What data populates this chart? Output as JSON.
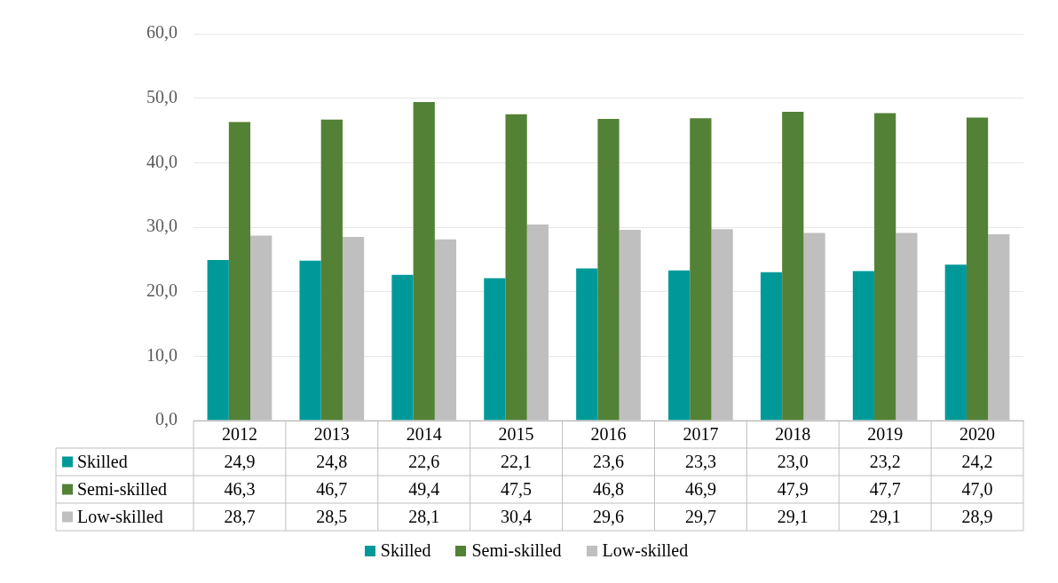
{
  "chart_data": {
    "type": "bar",
    "categories": [
      "2012",
      "2013",
      "2014",
      "2015",
      "2016",
      "2017",
      "2018",
      "2019",
      "2020"
    ],
    "series": [
      {
        "name": "Skilled",
        "color": "#009999",
        "values": [
          24.9,
          24.8,
          22.6,
          22.1,
          23.6,
          23.3,
          23.0,
          23.2,
          24.2
        ],
        "value_labels": [
          "24,9",
          "24,8",
          "22,6",
          "22,1",
          "23,6",
          "23,3",
          "23,0",
          "23,2",
          "24,2"
        ]
      },
      {
        "name": "Semi-skilled",
        "color": "#538135",
        "values": [
          46.3,
          46.7,
          49.4,
          47.5,
          46.8,
          46.9,
          47.9,
          47.7,
          47.0
        ],
        "value_labels": [
          "46,3",
          "46,7",
          "49,4",
          "47,5",
          "46,8",
          "46,9",
          "47,9",
          "47,7",
          "47,0"
        ]
      },
      {
        "name": "Low-skilled",
        "color": "#bfbfbf",
        "values": [
          28.7,
          28.5,
          28.1,
          30.4,
          29.6,
          29.7,
          29.1,
          29.1,
          28.9
        ],
        "value_labels": [
          "28,7",
          "28,5",
          "28,1",
          "30,4",
          "29,6",
          "29,7",
          "29,1",
          "29,1",
          "28,9"
        ]
      }
    ],
    "ylim": [
      0,
      60
    ],
    "yticks": [
      {
        "value": 0,
        "label": "0,0"
      },
      {
        "value": 10,
        "label": "10,0"
      },
      {
        "value": 20,
        "label": "20,0"
      },
      {
        "value": 30,
        "label": "30,0"
      },
      {
        "value": 40,
        "label": "40,0"
      },
      {
        "value": 50,
        "label": "50,0"
      },
      {
        "value": 60,
        "label": "60,0"
      }
    ],
    "grid": "y",
    "legend": "bottom"
  }
}
